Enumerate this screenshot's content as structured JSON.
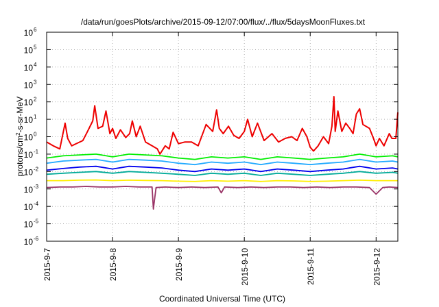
{
  "chart_data": {
    "type": "line",
    "title": "/data/run/goesPlots/archive/2015-09-12/07:00/flux/../flux/5daysMoonFluxes.txt",
    "xlabel": "Coordinated Universal Time (UTC)",
    "ylabel": "protons/cm²-s-sr-MeV",
    "yscale": "log",
    "ylim": [
      1e-06,
      1000000.0
    ],
    "xlim": [
      0,
      5.33
    ],
    "x_unit": "days since 2015-09-07 00:00 UTC",
    "grid": true,
    "legend": "none",
    "y_ticks": [
      {
        "value": 1e-06,
        "base": "10",
        "exp": "-6"
      },
      {
        "value": 1e-05,
        "base": "10",
        "exp": "-5"
      },
      {
        "value": 0.0001,
        "base": "10",
        "exp": "-4"
      },
      {
        "value": 0.001,
        "base": "10",
        "exp": "-3"
      },
      {
        "value": 0.01,
        "base": "10",
        "exp": "-2"
      },
      {
        "value": 0.1,
        "base": "10",
        "exp": "-1"
      },
      {
        "value": 1,
        "base": "10",
        "exp": "0"
      },
      {
        "value": 10,
        "base": "10",
        "exp": "1"
      },
      {
        "value": 100,
        "base": "10",
        "exp": "2"
      },
      {
        "value": 1000,
        "base": "10",
        "exp": "3"
      },
      {
        "value": 10000,
        "base": "10",
        "exp": "4"
      },
      {
        "value": 100000,
        "base": "10",
        "exp": "5"
      },
      {
        "value": 1000000,
        "base": "10",
        "exp": "6"
      }
    ],
    "x_ticks": [
      {
        "value": 0,
        "label": "2015-9-7"
      },
      {
        "value": 1,
        "label": "2015-9-8"
      },
      {
        "value": 2,
        "label": "2015-9-9"
      },
      {
        "value": 3,
        "label": "2015-9-10"
      },
      {
        "value": 4,
        "label": "2015-9-11"
      },
      {
        "value": 5,
        "label": "2015-9-12"
      }
    ],
    "series": [
      {
        "color": "#ee0000",
        "x": [
          0.0,
          0.1,
          0.2,
          0.28,
          0.32,
          0.38,
          0.45,
          0.55,
          0.62,
          0.7,
          0.73,
          0.78,
          0.85,
          0.9,
          0.96,
          1.0,
          1.05,
          1.12,
          1.2,
          1.26,
          1.3,
          1.36,
          1.42,
          1.5,
          1.6,
          1.68,
          1.72,
          1.8,
          1.86,
          1.92,
          2.0,
          2.1,
          2.2,
          2.3,
          2.42,
          2.52,
          2.58,
          2.62,
          2.68,
          2.76,
          2.84,
          2.92,
          3.0,
          3.05,
          3.12,
          3.2,
          3.3,
          3.42,
          3.52,
          3.62,
          3.72,
          3.8,
          3.88,
          3.95,
          4.0,
          4.05,
          4.12,
          4.2,
          4.28,
          4.33,
          4.36,
          4.38,
          4.42,
          4.48,
          4.54,
          4.6,
          4.65,
          4.7,
          4.75,
          4.8,
          4.9,
          4.96,
          5.0,
          5.05,
          5.12,
          5.2,
          5.24,
          5.3,
          5.33
        ],
        "values": [
          0.5,
          0.3,
          0.2,
          6,
          0.8,
          0.3,
          0.4,
          0.6,
          2,
          8,
          60,
          3,
          4,
          30,
          1.5,
          3,
          0.8,
          2.5,
          0.9,
          1.5,
          8,
          1,
          4,
          0.5,
          0.3,
          0.2,
          0.1,
          0.3,
          0.2,
          1.8,
          0.4,
          0.5,
          0.5,
          0.3,
          5,
          2,
          35,
          3,
          1.5,
          4,
          1.2,
          0.8,
          2,
          10,
          1,
          6,
          0.6,
          1.5,
          0.5,
          0.8,
          1,
          0.6,
          3,
          1,
          0.25,
          0.15,
          0.3,
          1,
          0.4,
          4,
          200,
          2,
          30,
          2,
          6,
          3,
          1.5,
          20,
          40,
          5,
          3,
          0.8,
          0.3,
          0.8,
          0.3,
          1.5,
          0.8,
          0.8,
          25
        ]
      },
      {
        "color": "#00ee00",
        "x": [
          0.0,
          0.25,
          0.5,
          0.75,
          1.0,
          1.25,
          1.5,
          1.75,
          2.0,
          2.25,
          2.5,
          2.75,
          3.0,
          3.25,
          3.5,
          3.75,
          4.0,
          4.25,
          4.5,
          4.75,
          5.0,
          5.25,
          5.33
        ],
        "values": [
          0.06,
          0.08,
          0.09,
          0.1,
          0.07,
          0.1,
          0.09,
          0.08,
          0.06,
          0.05,
          0.07,
          0.06,
          0.07,
          0.05,
          0.07,
          0.06,
          0.05,
          0.06,
          0.07,
          0.1,
          0.07,
          0.08,
          0.07
        ]
      },
      {
        "color": "#22aaff",
        "x": [
          0.0,
          0.25,
          0.5,
          0.75,
          1.0,
          1.25,
          1.5,
          1.75,
          2.0,
          2.25,
          2.5,
          2.75,
          3.0,
          3.25,
          3.5,
          3.75,
          4.0,
          4.25,
          4.5,
          4.75,
          5.0,
          5.25,
          5.33
        ],
        "values": [
          0.03,
          0.04,
          0.045,
          0.05,
          0.035,
          0.05,
          0.045,
          0.04,
          0.03,
          0.025,
          0.035,
          0.03,
          0.035,
          0.025,
          0.035,
          0.03,
          0.025,
          0.03,
          0.035,
          0.05,
          0.035,
          0.04,
          0.035
        ]
      },
      {
        "color": "#0000ee",
        "x": [
          0.0,
          0.25,
          0.5,
          0.75,
          1.0,
          1.25,
          1.5,
          1.75,
          2.0,
          2.25,
          2.5,
          2.75,
          3.0,
          3.25,
          3.5,
          3.75,
          4.0,
          4.25,
          4.5,
          4.75,
          5.0,
          5.25,
          5.33
        ],
        "values": [
          0.012,
          0.015,
          0.018,
          0.02,
          0.014,
          0.02,
          0.018,
          0.016,
          0.012,
          0.01,
          0.014,
          0.012,
          0.014,
          0.01,
          0.014,
          0.012,
          0.01,
          0.012,
          0.014,
          0.02,
          0.014,
          0.016,
          0.014
        ]
      },
      {
        "color": "#00aa99",
        "x": [
          0.0,
          0.25,
          0.5,
          0.75,
          1.0,
          1.25,
          1.5,
          1.75,
          2.0,
          2.25,
          2.5,
          2.75,
          3.0,
          3.25,
          3.5,
          3.75,
          4.0,
          4.25,
          4.5,
          4.75,
          5.0,
          5.25,
          5.33
        ],
        "values": [
          0.007,
          0.008,
          0.009,
          0.01,
          0.008,
          0.01,
          0.009,
          0.008,
          0.007,
          0.006,
          0.008,
          0.007,
          0.008,
          0.006,
          0.008,
          0.007,
          0.006,
          0.007,
          0.008,
          0.01,
          0.008,
          0.009,
          0.008
        ]
      },
      {
        "color": "#ffee00",
        "x": [
          0.0,
          0.25,
          0.5,
          0.75,
          1.0,
          1.25,
          1.5,
          1.75,
          2.0,
          2.25,
          2.5,
          2.75,
          3.0,
          3.25,
          3.5,
          3.75,
          4.0,
          4.25,
          4.5,
          4.75,
          5.0,
          5.25,
          5.33
        ],
        "values": [
          0.003,
          0.003,
          0.0032,
          0.0033,
          0.003,
          0.0032,
          0.0031,
          0.003,
          0.0028,
          0.0027,
          0.003,
          0.0028,
          0.003,
          0.0027,
          0.003,
          0.0029,
          0.0027,
          0.0028,
          0.003,
          0.0032,
          0.003,
          0.003,
          0.003
        ]
      },
      {
        "color": "#993366",
        "x": [
          0.0,
          0.2,
          0.4,
          0.6,
          0.8,
          1.0,
          1.2,
          1.4,
          1.6,
          1.62,
          1.66,
          1.8,
          2.0,
          2.2,
          2.4,
          2.6,
          2.65,
          2.7,
          2.9,
          3.1,
          3.3,
          3.5,
          3.7,
          3.9,
          4.1,
          4.3,
          4.5,
          4.7,
          4.9,
          5.0,
          5.1,
          5.2,
          5.33
        ],
        "values": [
          0.0012,
          0.0013,
          0.0013,
          0.0014,
          0.0013,
          0.0013,
          0.0014,
          0.0013,
          0.0013,
          7e-05,
          0.0012,
          0.0013,
          0.0012,
          0.0013,
          0.0012,
          0.0013,
          0.0006,
          0.0013,
          0.0012,
          0.0013,
          0.0012,
          0.0013,
          0.0013,
          0.0012,
          0.0013,
          0.0012,
          0.0013,
          0.0013,
          0.0012,
          0.0005,
          0.0012,
          0.0013,
          0.0012
        ]
      }
    ]
  }
}
